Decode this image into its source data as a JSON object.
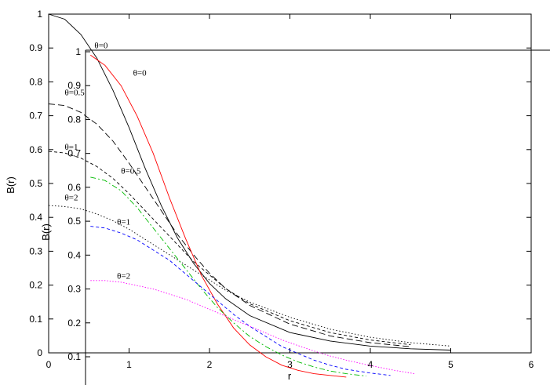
{
  "chart_data": [
    {
      "type": "line",
      "xlabel": "r",
      "ylabel": "B(r)",
      "xlim": [
        0,
        6
      ],
      "ylim": [
        0,
        1
      ],
      "x_ticks": [
        "0",
        "1",
        "2",
        "3",
        "4",
        "5",
        "6"
      ],
      "y_ticks": [
        "0",
        "0.1",
        "0.2",
        "0.3",
        "0.4",
        "0.5",
        "0.6",
        "0.7",
        "0.8",
        "0.9",
        "1"
      ],
      "grid": false,
      "series": [
        {
          "color": "#000000",
          "dash": "solid",
          "x": [
            0,
            0.2,
            0.4,
            0.6,
            0.8,
            1.0,
            1.2,
            1.4,
            1.6,
            1.8,
            2.0,
            2.2,
            2.5,
            3.0,
            3.5,
            4.0,
            4.5,
            5.0
          ],
          "y": [
            1.0,
            0.985,
            0.94,
            0.87,
            0.775,
            0.665,
            0.545,
            0.435,
            0.34,
            0.265,
            0.205,
            0.16,
            0.11,
            0.06,
            0.035,
            0.02,
            0.012,
            0.008
          ]
        },
        {
          "label": "θ=0.5",
          "color": "#000000",
          "dash": "8,4",
          "x": [
            0,
            0.2,
            0.4,
            0.6,
            0.8,
            1.0,
            1.2,
            1.4,
            1.6,
            1.8,
            2.0,
            2.2,
            2.5,
            3.0,
            3.5,
            4.0,
            4.5
          ],
          "y": [
            0.735,
            0.73,
            0.71,
            0.675,
            0.625,
            0.56,
            0.49,
            0.42,
            0.35,
            0.29,
            0.235,
            0.19,
            0.14,
            0.085,
            0.05,
            0.03,
            0.018
          ]
        },
        {
          "label": "θ=1",
          "color": "#000000",
          "dash": "4,3",
          "x": [
            0,
            0.2,
            0.4,
            0.6,
            0.8,
            1.0,
            1.2,
            1.4,
            1.6,
            1.8,
            2.0,
            2.2,
            2.5,
            3.0,
            3.5,
            4.0,
            4.5
          ],
          "y": [
            0.595,
            0.59,
            0.575,
            0.55,
            0.515,
            0.47,
            0.42,
            0.37,
            0.32,
            0.27,
            0.23,
            0.19,
            0.145,
            0.095,
            0.06,
            0.038,
            0.024
          ]
        },
        {
          "label": "θ=2",
          "color": "#000000",
          "dash": "1.5,2.5",
          "x": [
            0,
            0.2,
            0.4,
            0.6,
            0.8,
            1.0,
            1.2,
            1.4,
            1.6,
            1.8,
            2.0,
            2.2,
            2.5,
            3.0,
            3.5,
            4.0,
            4.5,
            5.0
          ],
          "y": [
            0.435,
            0.432,
            0.425,
            0.41,
            0.39,
            0.365,
            0.335,
            0.305,
            0.275,
            0.245,
            0.215,
            0.185,
            0.15,
            0.105,
            0.07,
            0.046,
            0.03,
            0.02
          ]
        }
      ],
      "curve_labels": [
        {
          "text": "θ=0.5",
          "x": 0.2,
          "y": 0.76
        },
        {
          "text": "θ=1",
          "x": 0.2,
          "y": 0.6
        },
        {
          "text": "θ=2",
          "x": 0.2,
          "y": 0.45
        }
      ]
    },
    {
      "type": "line",
      "xlabel": "",
      "ylabel": "B(r)",
      "x_ticks": [],
      "y_ticks": [
        "0.1",
        "0.2",
        "0.3",
        "0.4",
        "0.5",
        "0.6",
        "0.7",
        "0.8",
        "0.9",
        "1"
      ],
      "grid": false,
      "series": [
        {
          "label": "θ=0",
          "color": "#ff0000",
          "dash": "solid",
          "x": [
            0.52,
            0.7,
            0.9,
            1.1,
            1.3,
            1.5,
            1.7,
            1.9,
            2.1,
            2.3,
            2.5,
            2.7,
            2.9,
            3.1,
            3.3,
            3.5,
            3.7
          ],
          "y": [
            0.99,
            0.96,
            0.9,
            0.81,
            0.7,
            0.57,
            0.45,
            0.34,
            0.255,
            0.185,
            0.135,
            0.1,
            0.075,
            0.06,
            0.05,
            0.045,
            0.04
          ]
        },
        {
          "label": "θ=0.5",
          "color": "#00bb00",
          "dash": "7,3,2,3",
          "x": [
            0.52,
            0.7,
            0.9,
            1.1,
            1.3,
            1.5,
            1.7,
            1.9,
            2.1,
            2.3,
            2.5,
            2.7,
            2.9,
            3.1,
            3.3,
            3.5,
            3.7,
            3.95
          ],
          "y": [
            0.63,
            0.62,
            0.59,
            0.54,
            0.48,
            0.42,
            0.36,
            0.3,
            0.245,
            0.2,
            0.16,
            0.13,
            0.105,
            0.085,
            0.07,
            0.058,
            0.05,
            0.043
          ]
        },
        {
          "label": "θ=1",
          "color": "#0000ff",
          "dash": "4,3",
          "x": [
            0.52,
            0.7,
            0.9,
            1.1,
            1.3,
            1.5,
            1.7,
            1.9,
            2.1,
            2.3,
            2.5,
            2.7,
            2.9,
            3.1,
            3.3,
            3.5,
            3.7,
            4.0,
            4.25
          ],
          "y": [
            0.485,
            0.48,
            0.465,
            0.445,
            0.415,
            0.385,
            0.345,
            0.305,
            0.265,
            0.225,
            0.19,
            0.16,
            0.13,
            0.11,
            0.09,
            0.075,
            0.063,
            0.052,
            0.045
          ]
        },
        {
          "label": "θ=2",
          "color": "#ff00ff",
          "dash": "1.5,2",
          "x": [
            0.52,
            0.7,
            0.9,
            1.1,
            1.3,
            1.5,
            1.7,
            1.9,
            2.1,
            2.3,
            2.5,
            2.7,
            2.9,
            3.1,
            3.3,
            3.5,
            3.7,
            4.0,
            4.3,
            4.55
          ],
          "y": [
            0.325,
            0.325,
            0.32,
            0.31,
            0.3,
            0.285,
            0.27,
            0.25,
            0.23,
            0.21,
            0.19,
            0.17,
            0.15,
            0.133,
            0.117,
            0.102,
            0.09,
            0.074,
            0.06,
            0.05
          ]
        }
      ],
      "curve_labels": [
        {
          "text": "θ=0",
          "x": 1.05,
          "y": 0.93
        },
        {
          "text": "θ=0",
          "x": 0.57,
          "y": 1.01
        },
        {
          "text": "θ=0.5",
          "x": 0.9,
          "y": 0.64
        },
        {
          "text": "θ=1",
          "x": 0.85,
          "y": 0.49
        },
        {
          "text": "θ=2",
          "x": 0.85,
          "y": 0.33
        }
      ]
    }
  ]
}
